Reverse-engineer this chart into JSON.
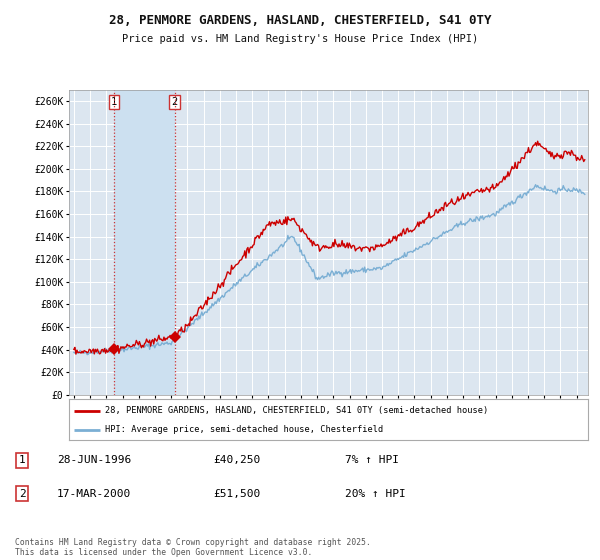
{
  "title_line1": "28, PENMORE GARDENS, HASLAND, CHESTERFIELD, S41 0TY",
  "title_line2": "Price paid vs. HM Land Registry's House Price Index (HPI)",
  "ylim": [
    0,
    270000
  ],
  "yticks": [
    0,
    20000,
    40000,
    60000,
    80000,
    100000,
    120000,
    140000,
    160000,
    180000,
    200000,
    220000,
    240000,
    260000
  ],
  "ytick_labels": [
    "£0",
    "£20K",
    "£40K",
    "£60K",
    "£80K",
    "£100K",
    "£120K",
    "£140K",
    "£160K",
    "£180K",
    "£200K",
    "£220K",
    "£240K",
    "£260K"
  ],
  "x_start_year": 1994,
  "x_end_year": 2025,
  "transaction1_date": 1996.49,
  "transaction1_price": 40250,
  "transaction1_label": "1",
  "transaction2_date": 2000.21,
  "transaction2_price": 51500,
  "transaction2_label": "2",
  "line_color_property": "#cc0000",
  "line_color_hpi": "#7bafd4",
  "highlight_color": "#cce0f0",
  "legend_label1": "28, PENMORE GARDENS, HASLAND, CHESTERFIELD, S41 0TY (semi-detached house)",
  "legend_label2": "HPI: Average price, semi-detached house, Chesterfield",
  "table_row1": [
    "1",
    "28-JUN-1996",
    "£40,250",
    "7% ↑ HPI"
  ],
  "table_row2": [
    "2",
    "17-MAR-2000",
    "£51,500",
    "20% ↑ HPI"
  ],
  "footnote": "Contains HM Land Registry data © Crown copyright and database right 2025.\nThis data is licensed under the Open Government Licence v3.0.",
  "bg_color": "#ffffff",
  "plot_bg_color": "#dce6f0",
  "grid_color": "#ffffff",
  "vline_color": "#cc3333"
}
